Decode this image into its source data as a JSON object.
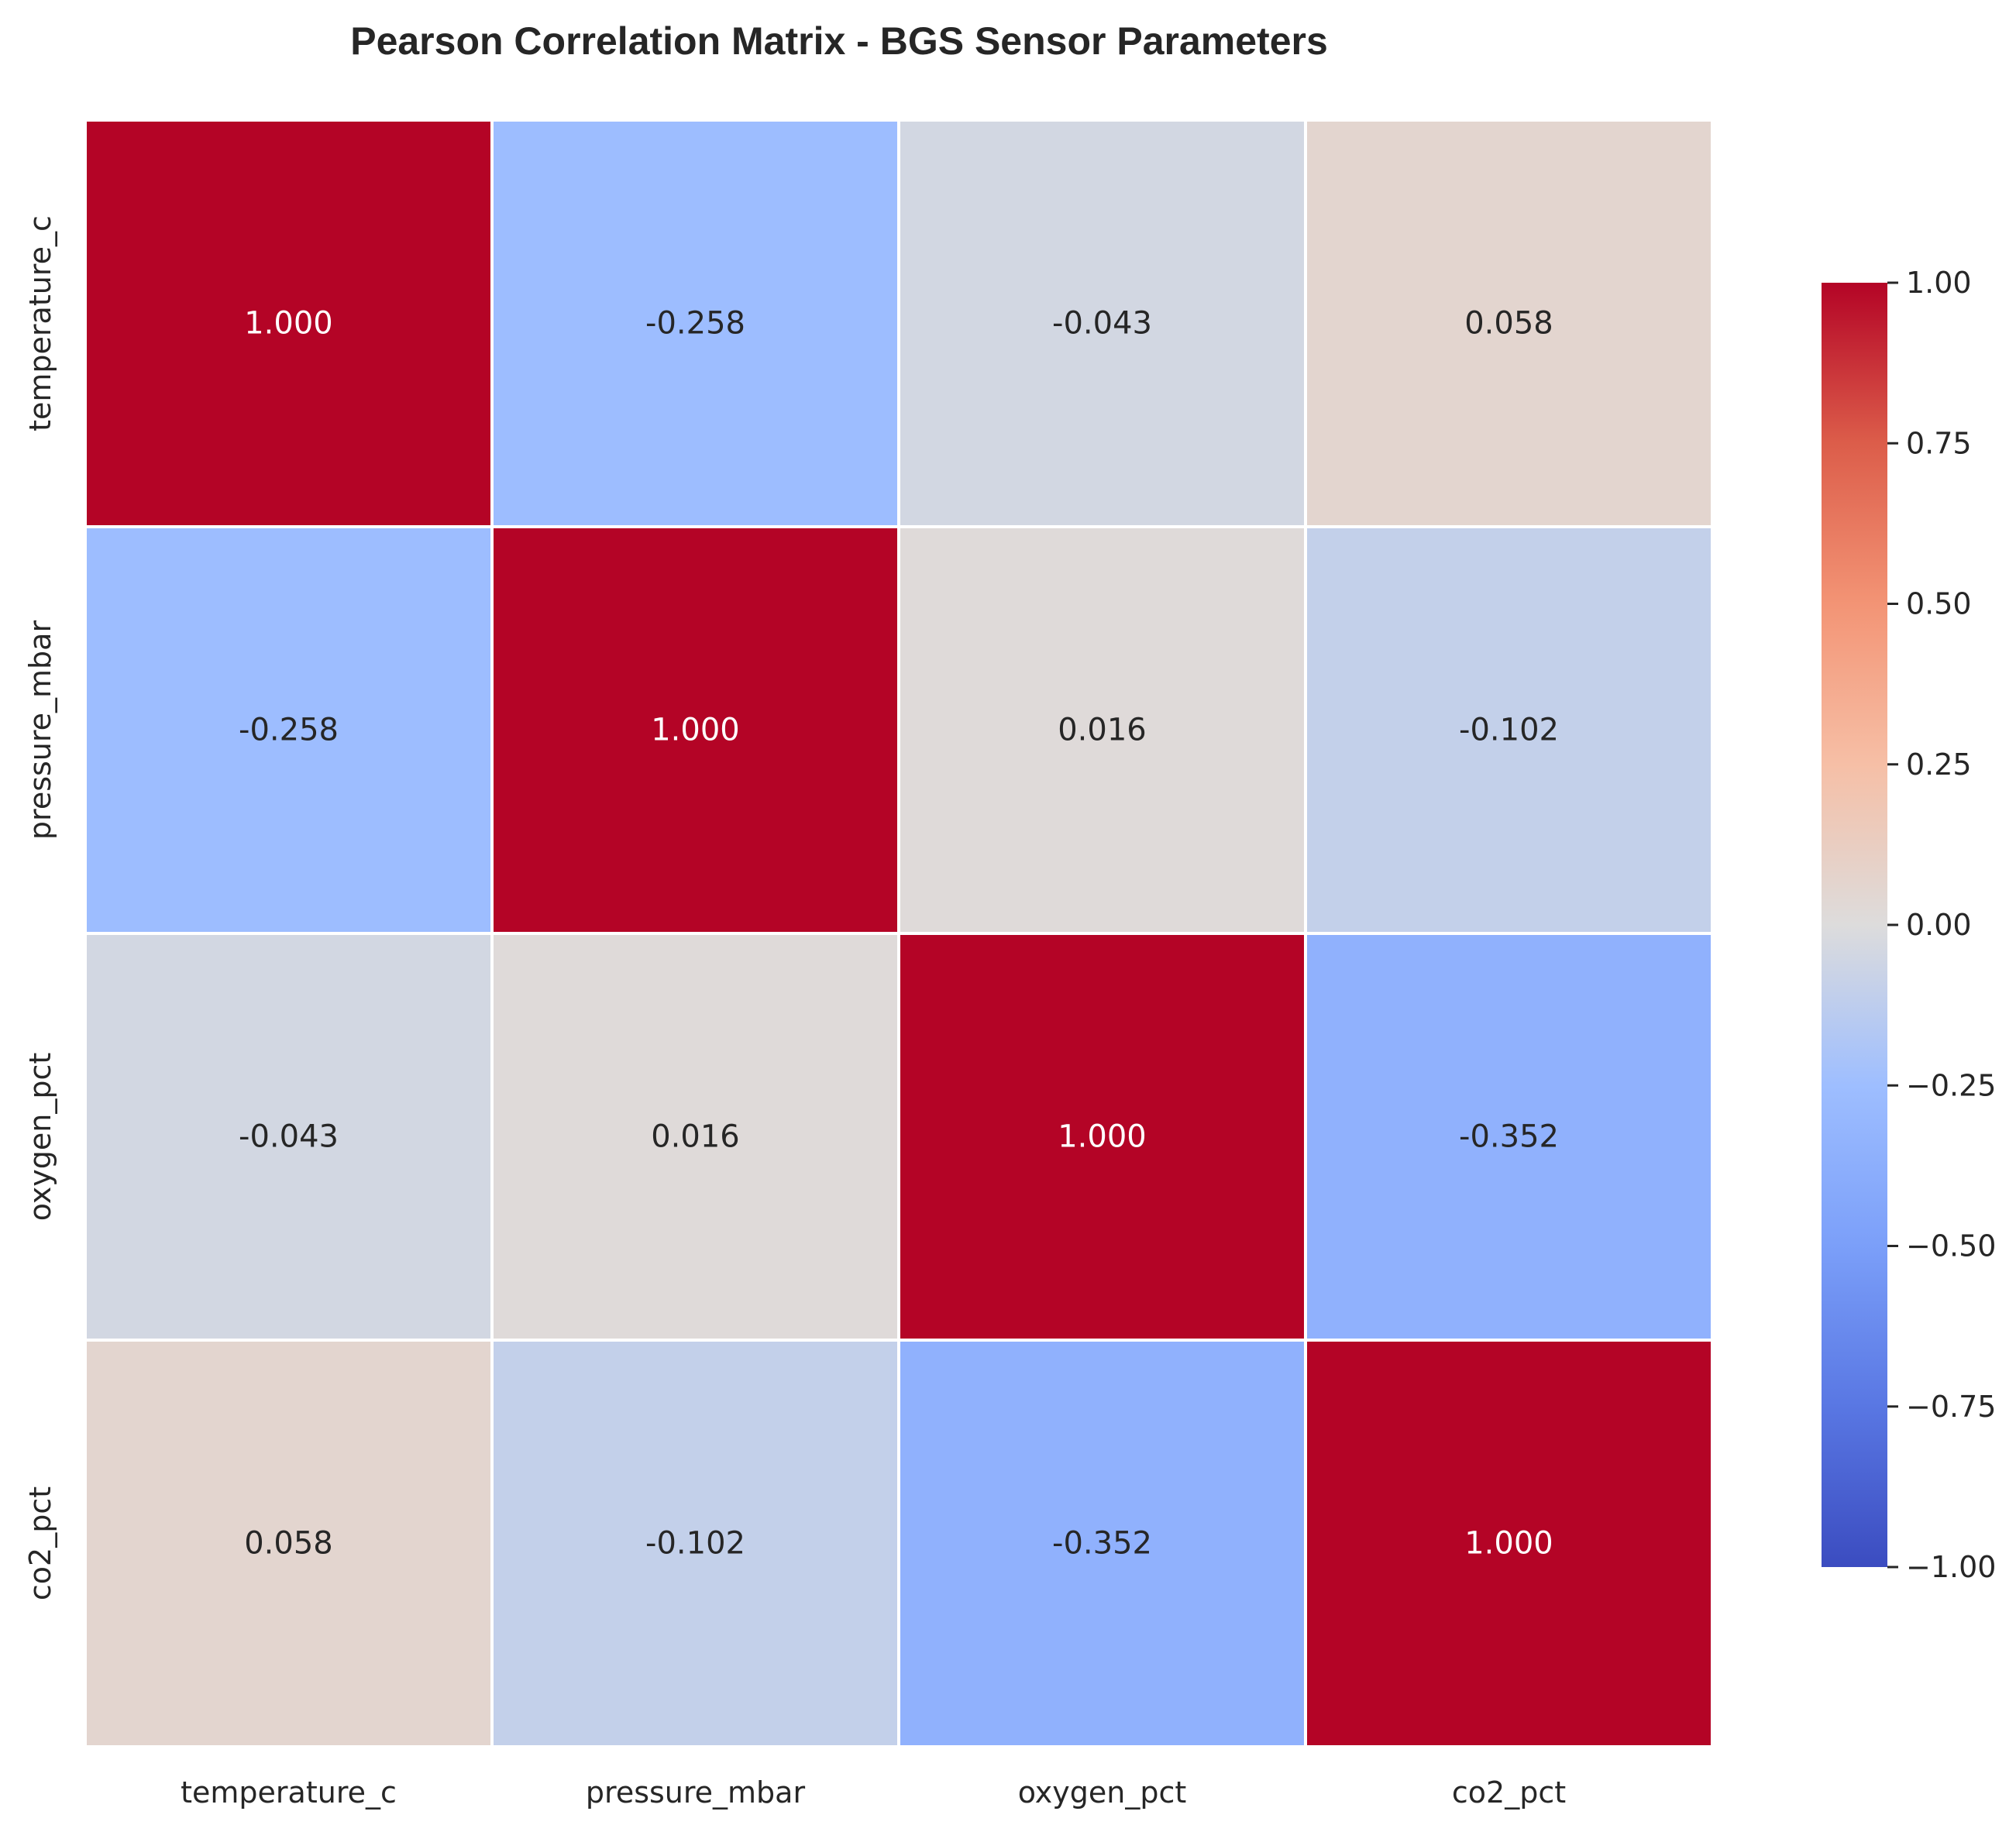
{
  "chart_data": {
    "type": "heatmap",
    "title": "Pearson Correlation Matrix - BGS Sensor Parameters",
    "row_labels": [
      "temperature_c",
      "pressure_mbar",
      "oxygen_pct",
      "co2_pct"
    ],
    "column_labels": [
      "temperature_c",
      "pressure_mbar",
      "oxygen_pct",
      "co2_pct"
    ],
    "values": [
      [
        1.0,
        -0.258,
        -0.043,
        0.058
      ],
      [
        -0.258,
        1.0,
        0.016,
        -0.102
      ],
      [
        -0.043,
        0.016,
        1.0,
        -0.352
      ],
      [
        0.058,
        -0.102,
        -0.352,
        1.0
      ]
    ],
    "value_labels": [
      [
        "1.000",
        "-0.258",
        "-0.043",
        "0.058"
      ],
      [
        "-0.258",
        "1.000",
        "0.016",
        "-0.102"
      ],
      [
        "-0.043",
        "0.016",
        "1.000",
        "-0.352"
      ],
      [
        "0.058",
        "-0.102",
        "-0.352",
        "1.000"
      ]
    ],
    "colormap": "coolwarm",
    "vmin": -1.0,
    "vmax": 1.0,
    "colorbar": {
      "ticks": [
        1.0,
        0.75,
        0.5,
        0.25,
        0.0,
        -0.25,
        -0.5,
        -0.75,
        -1.0
      ],
      "tick_labels": [
        "1.00",
        "0.75",
        "0.50",
        "0.25",
        "0.00",
        "−0.25",
        "−0.50",
        "−0.75",
        "−1.00"
      ],
      "placement": "right"
    },
    "grid": false
  },
  "colors": {
    "cell_border": "#ffffff",
    "text_dark": "#262626",
    "text_light": "#ffffff"
  }
}
